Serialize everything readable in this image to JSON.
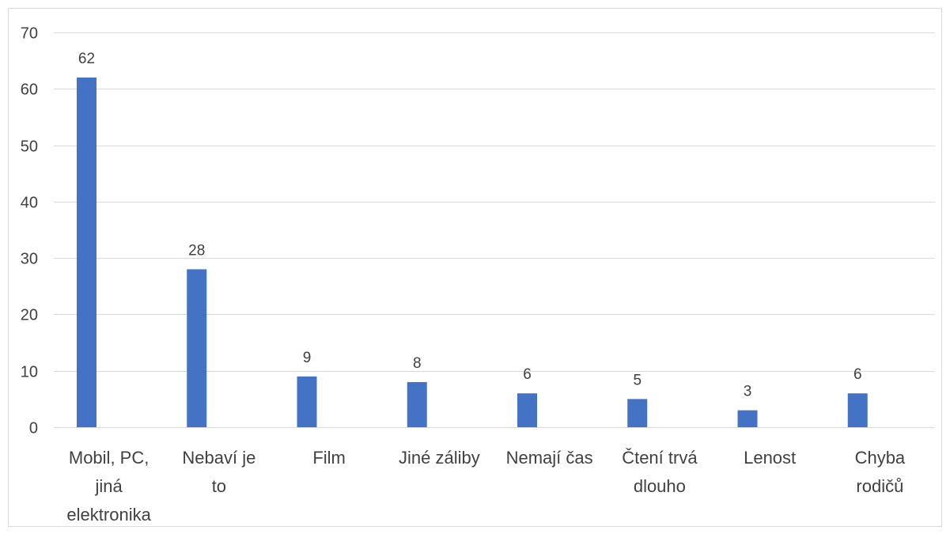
{
  "chart_data": {
    "type": "bar",
    "categories": [
      [
        "Mobil, PC,",
        "jiná",
        "elektronika"
      ],
      [
        "Nebaví je",
        "to"
      ],
      [
        "Film"
      ],
      [
        "Jiné záliby"
      ],
      [
        "Nemají čas"
      ],
      [
        "Čtení trvá",
        "dlouho"
      ],
      [
        "Lenost"
      ],
      [
        "Chyba",
        "rodičů"
      ]
    ],
    "values": [
      62,
      28,
      9,
      8,
      6,
      5,
      3,
      6
    ],
    "data_labels": [
      "62",
      "28",
      "9",
      "8",
      "6",
      "5",
      "3",
      "6"
    ],
    "ylim": [
      0,
      70
    ],
    "yticks": [
      "0",
      "10",
      "20",
      "30",
      "40",
      "50",
      "60",
      "70"
    ],
    "title": "",
    "xlabel": "",
    "ylabel": "",
    "grid": true,
    "legend": "none",
    "colors": {
      "bar": "#4472C4",
      "grid": "#D9D9D9",
      "border": "#D9D9D9",
      "text": "#404040"
    }
  }
}
